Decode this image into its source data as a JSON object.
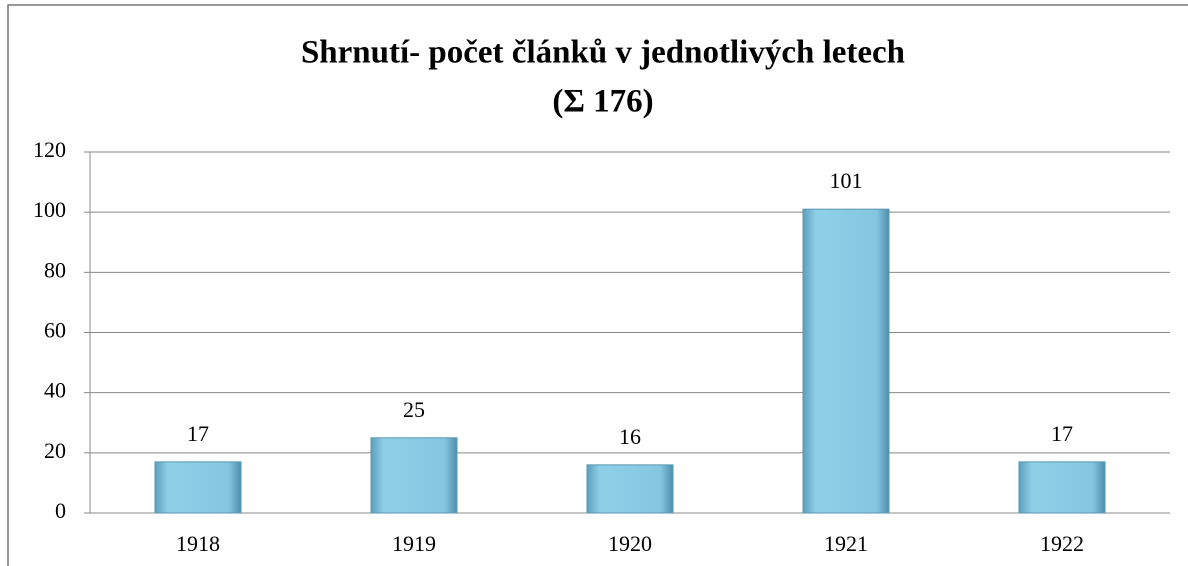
{
  "chart_data": {
    "type": "bar",
    "title": "Shrnutí- počet článků v jednotlivých letech",
    "subtitle": "(Σ 176)",
    "categories": [
      "1918",
      "1919",
      "1920",
      "1921",
      "1922"
    ],
    "values": [
      17,
      25,
      16,
      101,
      17
    ],
    "color": "#7fc0dc",
    "ylim": [
      0,
      120
    ],
    "yticks": [
      0,
      20,
      40,
      60,
      80,
      100,
      120
    ],
    "grid": true
  }
}
